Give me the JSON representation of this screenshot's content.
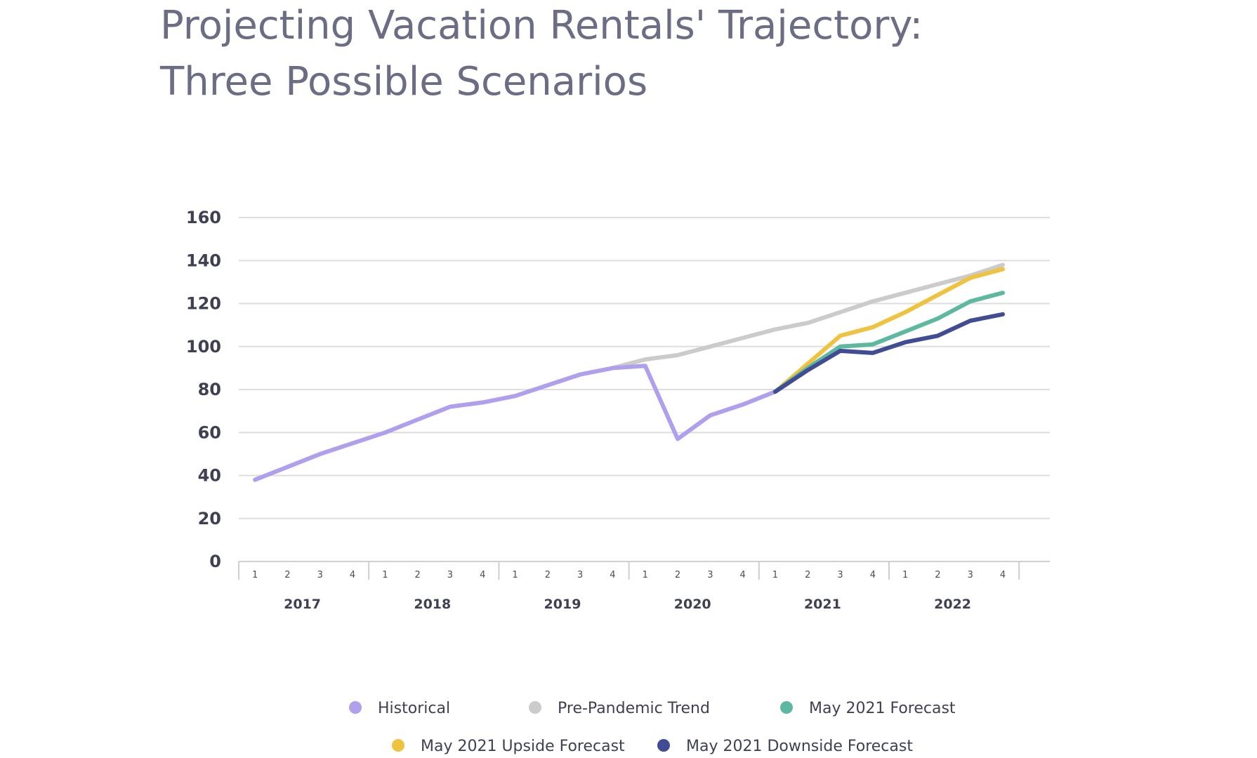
{
  "title": {
    "line1": "Projecting Vacation Rentals' Trajectory:",
    "line2": "Three Possible Scenarios"
  },
  "chart_data": {
    "type": "line",
    "title": "Projecting Vacation Rentals' Trajectory: Three Possible Scenarios",
    "xlabel": "",
    "ylabel": "",
    "ylim": [
      0,
      160
    ],
    "yticks": [
      "0",
      "20",
      "40",
      "60",
      "80",
      "100",
      "120",
      "140",
      "160"
    ],
    "years": [
      "2017",
      "2018",
      "2019",
      "2020",
      "2021",
      "2022"
    ],
    "quarter_labels": [
      "1",
      "2",
      "3",
      "4"
    ],
    "categories": [
      "2017 Q1",
      "2017 Q2",
      "2017 Q3",
      "2017 Q4",
      "2018 Q1",
      "2018 Q2",
      "2018 Q3",
      "2018 Q4",
      "2019 Q1",
      "2019 Q2",
      "2019 Q3",
      "2019 Q4",
      "2020 Q1",
      "2020 Q2",
      "2020 Q3",
      "2020 Q4",
      "2021 Q1",
      "2021 Q2",
      "2021 Q3",
      "2021 Q4",
      "2022 Q1",
      "2022 Q2",
      "2022 Q3",
      "2022 Q4"
    ],
    "grid": true,
    "legend_position": "bottom",
    "series": [
      {
        "name": "Historical",
        "color": "#b09fec",
        "values": [
          38,
          44,
          50,
          55,
          60,
          66,
          72,
          74,
          77,
          82,
          87,
          90,
          91,
          57,
          68,
          73,
          79,
          null,
          null,
          null,
          null,
          null,
          null,
          null
        ]
      },
      {
        "name": "Pre-Pandemic Trend",
        "color": "#cbcbcb",
        "values": [
          null,
          null,
          null,
          null,
          null,
          null,
          null,
          null,
          null,
          null,
          null,
          90,
          94,
          96,
          100,
          104,
          108,
          111,
          116,
          121,
          125,
          129,
          133,
          138
        ]
      },
      {
        "name": "May 2021 Forecast",
        "color": "#5db8a0",
        "values": [
          null,
          null,
          null,
          null,
          null,
          null,
          null,
          null,
          null,
          null,
          null,
          null,
          null,
          null,
          null,
          null,
          79,
          90,
          100,
          101,
          107,
          113,
          121,
          125
        ]
      },
      {
        "name": "May 2021 Upside Forecast",
        "color": "#efc23f",
        "values": [
          null,
          null,
          null,
          null,
          null,
          null,
          null,
          null,
          null,
          null,
          null,
          null,
          null,
          null,
          null,
          null,
          79,
          92,
          105,
          109,
          116,
          124,
          132,
          136
        ]
      },
      {
        "name": "May 2021 Downside Forecast",
        "color": "#414c94",
        "values": [
          null,
          null,
          null,
          null,
          null,
          null,
          null,
          null,
          null,
          null,
          null,
          null,
          null,
          null,
          null,
          null,
          79,
          89,
          98,
          97,
          102,
          105,
          112,
          115
        ]
      }
    ]
  }
}
